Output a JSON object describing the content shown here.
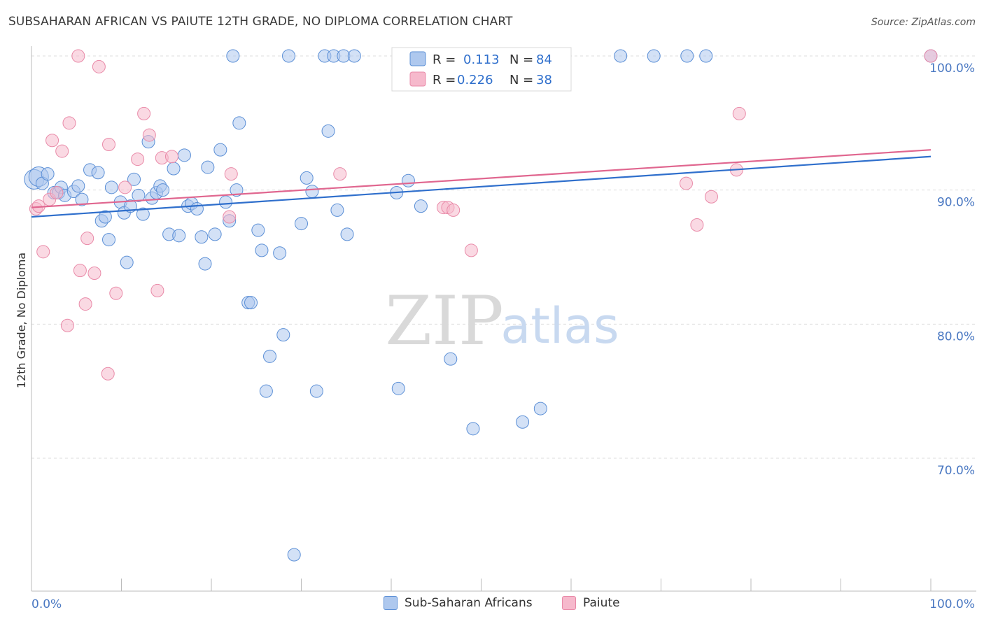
{
  "title": "SUBSAHARAN AFRICAN VS PAIUTE 12TH GRADE, NO DIPLOMA CORRELATION CHART",
  "source": "Source: ZipAtlas.com",
  "watermark": {
    "zip": "ZIP",
    "atlas": "atlas"
  },
  "legend": {
    "r_label": "R =",
    "n_label": "N =",
    "rows": [
      {
        "r": "0.113",
        "n": "84"
      },
      {
        "r": "0.226",
        "n": "38"
      }
    ]
  },
  "colors": {
    "blue_fill": "#aec8ee",
    "blue_stroke": "#5b8fd6",
    "blue_line": "#2f6fcc",
    "pink_fill": "#f6b9cc",
    "pink_stroke": "#e98aa8",
    "pink_line": "#e0668f",
    "tick_text": "#4a78c2"
  },
  "chart_data": {
    "type": "scatter",
    "title": "SUBSAHARAN AFRICAN VS PAIUTE 12TH GRADE, NO DIPLOMA CORRELATION CHART",
    "xlabel": "",
    "ylabel": "12th Grade, No Diploma",
    "xlim": [
      0,
      100
    ],
    "ylim": [
      60,
      101.5
    ],
    "x_tick_labels": [
      "0.0%",
      "100.0%"
    ],
    "y_tick_labels": [
      "70.0%",
      "80.0%",
      "90.0%",
      "100.0%"
    ],
    "y_ticks": [
      70,
      80,
      90,
      100
    ],
    "grid": true,
    "legend_position": "top-center",
    "series": [
      {
        "name": "Sub-Saharan Africans",
        "r": 0.113,
        "n": 84,
        "trend": [
          [
            0,
            88.0
          ],
          [
            100,
            92.5
          ]
        ],
        "points": [
          [
            0.3,
            90.8
          ],
          [
            0.8,
            91.0
          ],
          [
            1.2,
            90.5
          ],
          [
            1.8,
            91.2
          ],
          [
            2.5,
            89.8
          ],
          [
            3.0,
            89.8
          ],
          [
            3.3,
            90.2
          ],
          [
            3.7,
            89.6
          ],
          [
            4.7,
            89.9
          ],
          [
            5.2,
            90.3
          ],
          [
            5.6,
            89.3
          ],
          [
            6.5,
            91.5
          ],
          [
            7.4,
            91.3
          ],
          [
            7.8,
            87.7
          ],
          [
            8.2,
            88.0
          ],
          [
            8.6,
            86.3
          ],
          [
            8.9,
            90.2
          ],
          [
            9.9,
            89.1
          ],
          [
            10.3,
            88.3
          ],
          [
            10.6,
            84.6
          ],
          [
            11.0,
            88.8
          ],
          [
            11.4,
            90.8
          ],
          [
            11.9,
            89.6
          ],
          [
            12.4,
            88.2
          ],
          [
            13.0,
            93.6
          ],
          [
            13.4,
            89.4
          ],
          [
            13.9,
            89.8
          ],
          [
            14.3,
            90.3
          ],
          [
            14.6,
            90.0
          ],
          [
            15.3,
            86.7
          ],
          [
            15.8,
            91.6
          ],
          [
            16.4,
            86.6
          ],
          [
            17.0,
            92.6
          ],
          [
            17.4,
            88.8
          ],
          [
            17.8,
            89.0
          ],
          [
            18.4,
            88.6
          ],
          [
            18.9,
            86.5
          ],
          [
            19.3,
            84.5
          ],
          [
            19.6,
            91.7
          ],
          [
            20.4,
            86.7
          ],
          [
            21.0,
            93.0
          ],
          [
            21.6,
            89.1
          ],
          [
            22.0,
            87.7
          ],
          [
            22.4,
            100.0
          ],
          [
            22.8,
            90.0
          ],
          [
            23.1,
            95.0
          ],
          [
            24.1,
            81.6
          ],
          [
            24.4,
            81.6
          ],
          [
            25.2,
            87.0
          ],
          [
            25.6,
            85.5
          ],
          [
            26.1,
            75.0
          ],
          [
            26.5,
            77.6
          ],
          [
            27.6,
            85.3
          ],
          [
            28.0,
            79.2
          ],
          [
            28.6,
            100.0
          ],
          [
            29.2,
            62.8
          ],
          [
            30.0,
            87.5
          ],
          [
            30.6,
            90.9
          ],
          [
            31.2,
            89.9
          ],
          [
            31.7,
            75.0
          ],
          [
            32.6,
            100.0
          ],
          [
            33.0,
            94.4
          ],
          [
            33.6,
            100.0
          ],
          [
            34.0,
            88.5
          ],
          [
            34.7,
            100.0
          ],
          [
            35.1,
            86.7
          ],
          [
            35.9,
            100.0
          ],
          [
            40.6,
            89.8
          ],
          [
            40.8,
            75.2
          ],
          [
            41.9,
            90.7
          ],
          [
            43.3,
            88.8
          ],
          [
            45.6,
            100.0
          ],
          [
            46.6,
            77.4
          ],
          [
            49.1,
            72.2
          ],
          [
            52.2,
            100.0
          ],
          [
            54.6,
            72.7
          ],
          [
            56.6,
            73.7
          ],
          [
            58.6,
            100.0
          ],
          [
            65.5,
            100.0
          ],
          [
            69.2,
            100.0
          ],
          [
            72.9,
            100.0
          ],
          [
            75.0,
            100.0
          ],
          [
            100.0,
            100.0
          ],
          [
            56.8,
            99.5
          ]
        ]
      },
      {
        "name": "Paiute",
        "r": 0.226,
        "n": 38,
        "trend": [
          [
            0,
            88.7
          ],
          [
            100,
            93.0
          ]
        ],
        "points": [
          [
            0.5,
            88.6
          ],
          [
            0.8,
            88.8
          ],
          [
            1.3,
            85.4
          ],
          [
            2.0,
            89.3
          ],
          [
            2.3,
            93.7
          ],
          [
            2.8,
            89.8
          ],
          [
            3.4,
            92.9
          ],
          [
            4.0,
            79.9
          ],
          [
            4.2,
            95.0
          ],
          [
            5.2,
            100.0
          ],
          [
            5.4,
            84.0
          ],
          [
            6.0,
            81.5
          ],
          [
            6.2,
            86.4
          ],
          [
            7.0,
            83.8
          ],
          [
            7.5,
            99.2
          ],
          [
            8.5,
            76.3
          ],
          [
            8.6,
            93.4
          ],
          [
            9.4,
            82.3
          ],
          [
            10.4,
            90.2
          ],
          [
            11.8,
            92.3
          ],
          [
            12.5,
            95.7
          ],
          [
            13.1,
            94.1
          ],
          [
            14.0,
            82.5
          ],
          [
            14.5,
            92.4
          ],
          [
            15.6,
            92.5
          ],
          [
            22.2,
            91.2
          ],
          [
            22.0,
            88.0
          ],
          [
            34.3,
            91.2
          ],
          [
            45.8,
            88.7
          ],
          [
            46.3,
            88.7
          ],
          [
            46.9,
            88.5
          ],
          [
            48.9,
            85.5
          ],
          [
            72.8,
            90.5
          ],
          [
            74.0,
            87.4
          ],
          [
            75.6,
            89.5
          ],
          [
            78.4,
            91.5
          ],
          [
            78.7,
            95.7
          ],
          [
            100.0,
            100.0
          ]
        ]
      }
    ]
  }
}
